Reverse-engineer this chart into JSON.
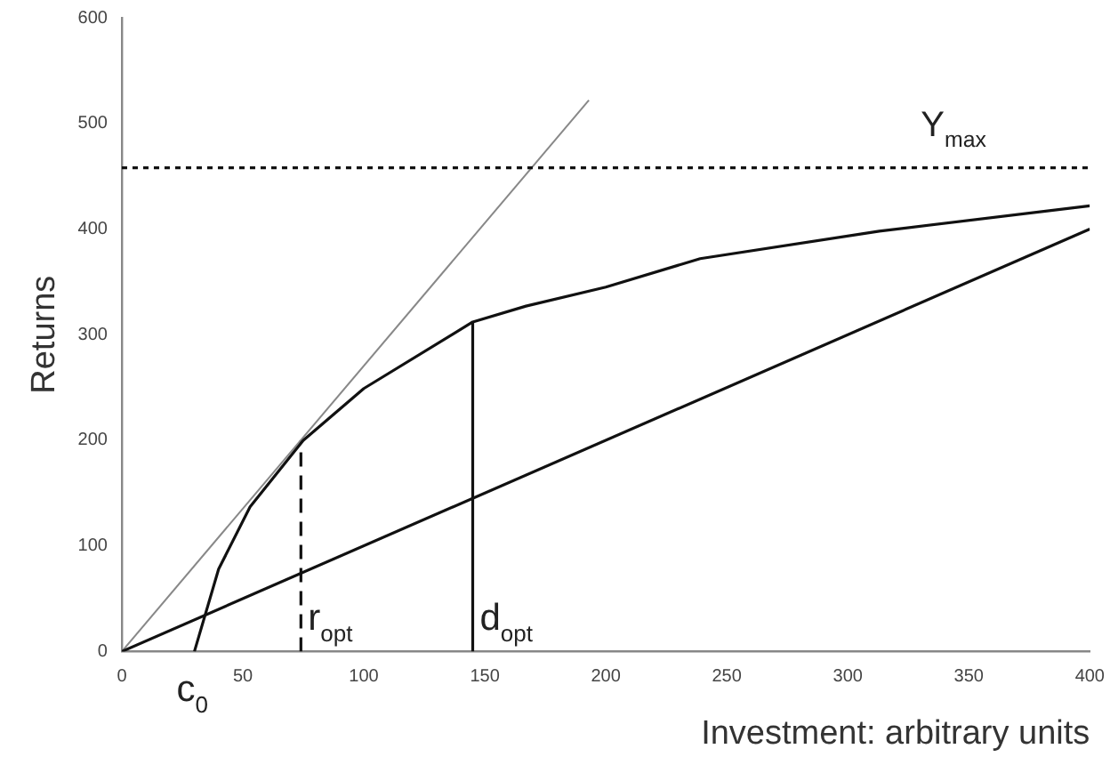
{
  "chart_data": {
    "type": "line",
    "xlabel": "Investment: arbitrary units",
    "ylabel": "Returns",
    "xlim": [
      0,
      400
    ],
    "xticks": [
      0,
      50,
      100,
      150,
      200,
      250,
      300,
      350,
      400
    ],
    "ylim": [
      0,
      600
    ],
    "yticks": [
      0,
      100,
      200,
      300,
      400,
      500,
      600
    ],
    "grid": false,
    "legend": false,
    "marker": "none",
    "series": [
      {
        "color": "#111111",
        "x": [
          0,
          400
        ],
        "values": [
          0,
          400
        ]
      },
      {
        "color": "#111111",
        "x": [
          30,
          40,
          53,
          75,
          100,
          145,
          167,
          200,
          239,
          313,
          400
        ],
        "values": [
          0,
          78,
          137,
          200,
          249,
          312,
          327,
          345,
          372,
          398,
          422
        ]
      },
      {
        "color": "#888888",
        "x": [
          0,
          193
        ],
        "values": [
          0,
          522
        ]
      },
      {
        "color": "#111111",
        "line_style": "dashed",
        "x": [
          74,
          74
        ],
        "values": [
          0,
          200
        ]
      },
      {
        "color": "#111111",
        "x": [
          145,
          145
        ],
        "values": [
          0,
          312
        ]
      }
    ],
    "ref_lines": [
      {
        "axis": "y",
        "value": 458,
        "label": "Y$_{max}$",
        "line_style": "dotted",
        "color": "#111111"
      }
    ],
    "annotations": [
      {
        "text": "r$_{opt}$",
        "x": 74,
        "y": 0
      },
      {
        "text": "d$_{opt}$",
        "x": 145,
        "y": 0
      },
      {
        "text": "c$_{0}$",
        "x": 30,
        "y": 0
      }
    ]
  }
}
